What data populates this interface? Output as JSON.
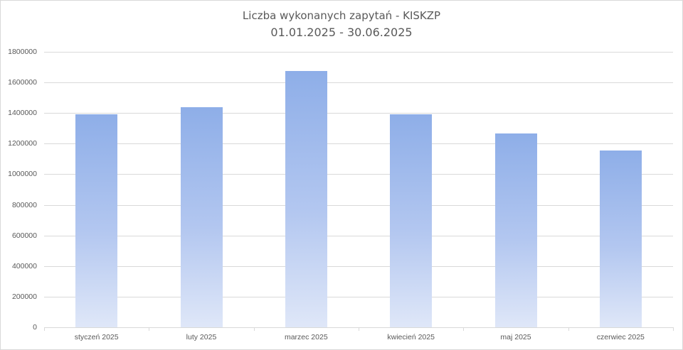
{
  "chart_data": {
    "type": "bar",
    "title": "Liczba wykonanych zapytań - KISKZP",
    "subtitle": "01.01.2025 - 30.06.2025",
    "categories": [
      "styczeń 2025",
      "luty 2025",
      "marzec 2025",
      "kwiecień 2025",
      "maj 2025",
      "czerwiec 2025"
    ],
    "values": [
      1391000,
      1438000,
      1674000,
      1391000,
      1266000,
      1155000
    ],
    "xlabel": "",
    "ylabel": "",
    "ylim": [
      0,
      1800000
    ],
    "yticks": [
      "0",
      "200000",
      "400000",
      "600000",
      "800000",
      "1000000",
      "1200000",
      "1400000",
      "1600000",
      "1800000"
    ],
    "grid": true,
    "legend": "none",
    "bar_color_top": "#8eaee8",
    "bar_color_bottom": "#dfe7f8"
  }
}
